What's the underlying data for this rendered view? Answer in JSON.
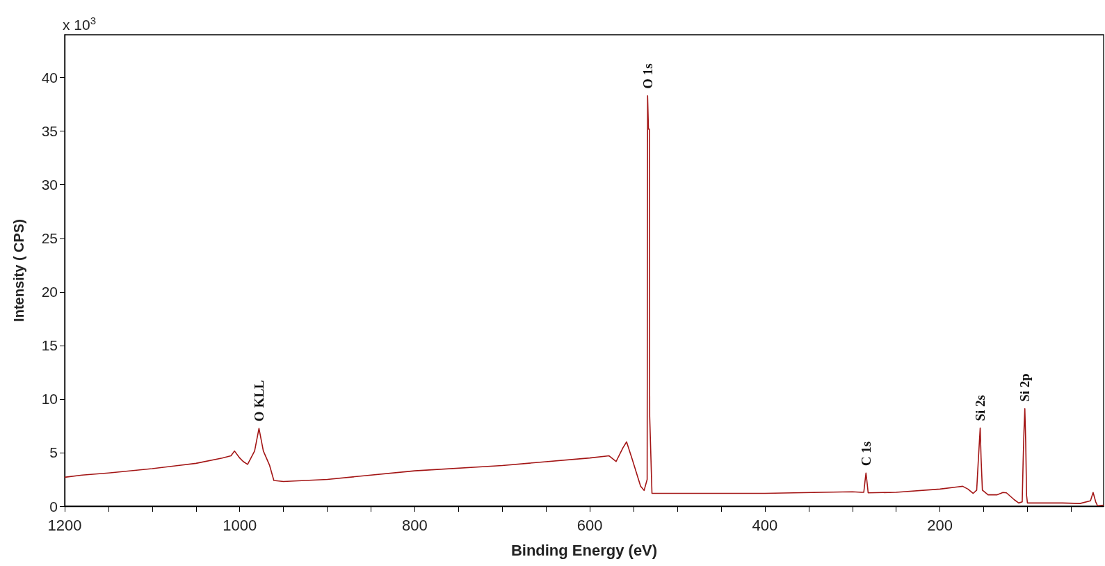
{
  "chart_data": {
    "type": "line",
    "xlabel": "Binding Energy (eV)",
    "ylabel": "Intensity ( CPS)",
    "xlim": [
      1200,
      13
    ],
    "ylim": [
      0,
      44
    ],
    "xticks": [
      1200,
      {
        "value": 1150,
        "label": null
      },
      {
        "value": 1100,
        "label": null
      },
      {
        "value": 1050,
        "label": null
      },
      1000,
      {
        "value": 950,
        "label": null
      },
      {
        "value": 900,
        "label": null
      },
      {
        "value": 850,
        "label": null
      },
      800,
      {
        "value": 750,
        "label": null
      },
      {
        "value": 700,
        "label": null
      },
      {
        "value": 650,
        "label": null
      },
      600,
      {
        "value": 550,
        "label": null
      },
      {
        "value": 500,
        "label": null
      },
      {
        "value": 450,
        "label": null
      },
      400,
      {
        "value": 350,
        "label": null
      },
      {
        "value": 300,
        "label": null
      },
      {
        "value": 250,
        "label": null
      },
      200,
      {
        "value": 150,
        "label": null
      },
      {
        "value": 100,
        "label": null
      },
      {
        "value": 50,
        "label": null
      }
    ],
    "yticks": [
      0,
      5,
      10,
      15,
      20,
      25,
      30,
      35,
      40
    ],
    "grid": false,
    "marker": "none",
    "line_style": "solid",
    "series": [
      {
        "color": "#a31515",
        "x": [
          1200,
          1180,
          1150,
          1100,
          1050,
          1020,
          1010,
          1006,
          1000,
          996,
          991,
          983,
          978,
          973,
          966,
          961,
          950,
          900,
          800,
          700,
          600,
          578,
          570,
          562,
          558,
          552,
          542,
          538,
          534.5,
          534,
          533,
          532,
          531.6,
          529,
          500,
          400,
          300,
          290,
          287,
          285.5,
          284.5,
          283.5,
          282,
          250,
          200,
          180,
          174,
          168,
          162,
          158,
          156,
          154,
          153,
          151.5,
          145,
          135,
          128,
          124,
          115,
          110,
          106,
          105,
          104,
          103,
          102,
          101,
          100,
          60,
          40,
          28,
          25,
          22,
          20,
          13
        ],
        "values": [
          2.7,
          2.9,
          3.1,
          3.5,
          4.0,
          4.5,
          4.7,
          5.15,
          4.5,
          4.17,
          3.9,
          5.15,
          7.26,
          5.15,
          3.84,
          2.4,
          2.3,
          2.5,
          3.3,
          3.8,
          4.5,
          4.7,
          4.17,
          5.48,
          6.0,
          4.5,
          1.87,
          1.47,
          2.5,
          38.3,
          35.2,
          35.2,
          8.4,
          1.2,
          1.2,
          1.2,
          1.35,
          1.3,
          1.3,
          2.4,
          3.1,
          2.4,
          1.25,
          1.3,
          1.6,
          1.8,
          1.86,
          1.6,
          1.2,
          1.5,
          4.5,
          7.3,
          4.5,
          1.5,
          1.06,
          1.06,
          1.28,
          1.25,
          0.6,
          0.3,
          0.4,
          4.0,
          7.0,
          9.1,
          6.0,
          1.0,
          0.3,
          0.3,
          0.25,
          0.5,
          1.28,
          0.4,
          0.05,
          0.1
        ]
      }
    ],
    "annotations": [
      "x 10$^{3}$",
      {
        "text": "O KLL",
        "x": 978,
        "y": 7.26
      },
      {
        "text": "O 1s",
        "x": 534,
        "y": 38.3
      },
      {
        "text": "C 1s",
        "x": 284.5,
        "y": 3.1
      },
      {
        "text": "Si 2s",
        "x": 154,
        "y": 7.3
      },
      {
        "text": "Si 2p",
        "x": 103,
        "y": 9.1
      }
    ]
  }
}
